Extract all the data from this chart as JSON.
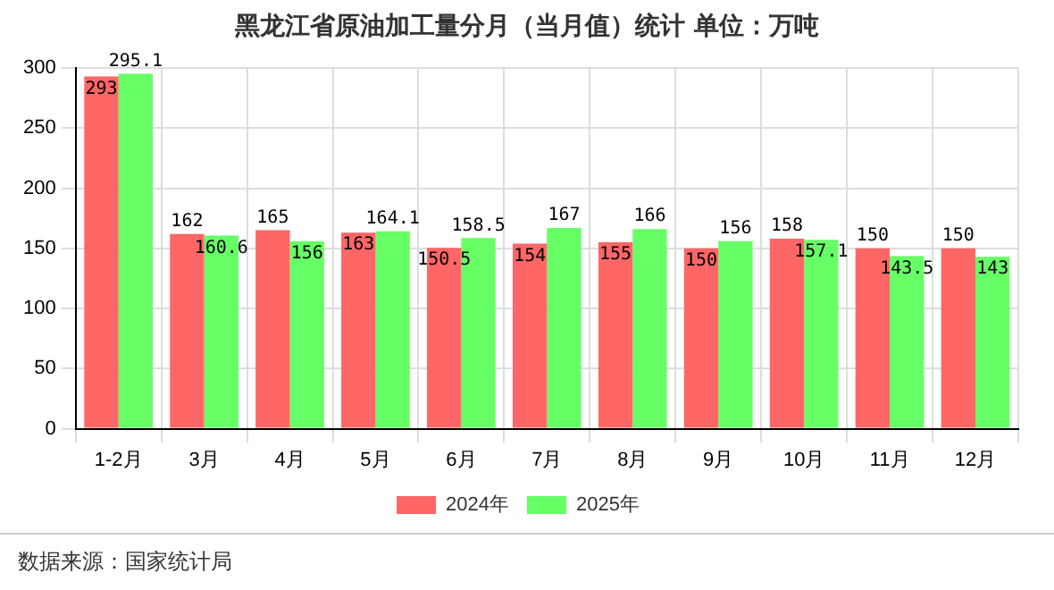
{
  "chart_data": {
    "type": "bar",
    "title": "黑龙江省原油加工量分月（当月值）统计  单位：万吨",
    "categories": [
      "1-2月",
      "3月",
      "4月",
      "5月",
      "6月",
      "7月",
      "8月",
      "9月",
      "10月",
      "11月",
      "12月"
    ],
    "series": [
      {
        "name": "2024年",
        "color": "#ff6666",
        "values": [
          293,
          162,
          165,
          163,
          150.5,
          154,
          155,
          150,
          158,
          150,
          150
        ]
      },
      {
        "name": "2025年",
        "color": "#66ff66",
        "values": [
          295.1,
          160.6,
          156,
          164.1,
          158.5,
          167,
          166,
          156,
          157.1,
          143.5,
          143
        ]
      }
    ],
    "ylim": [
      0,
      300
    ],
    "yticks": [
      0,
      50,
      100,
      150,
      200,
      250,
      300
    ],
    "grid": true,
    "legend": "bottom",
    "data_labels": true,
    "annotations": [
      "数据来源：国家统计局"
    ]
  }
}
